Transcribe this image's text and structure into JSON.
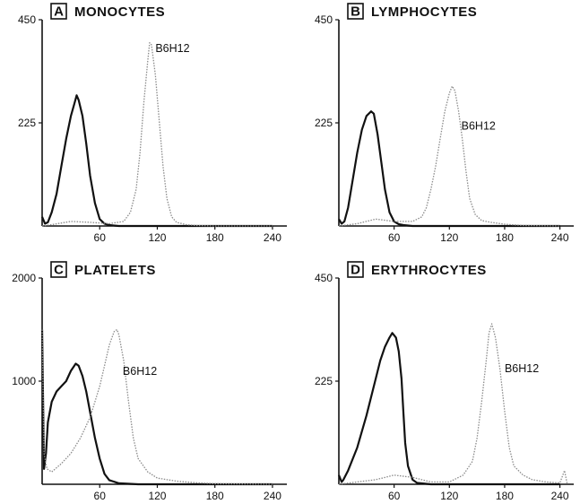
{
  "figure": {
    "background": "#ffffff",
    "ink": "#111111",
    "dotted_ink": "#8a8a8a"
  },
  "chart_data": [
    {
      "type": "line",
      "panel_letter": "A",
      "title": "MONOCYTES",
      "xlim": [
        0,
        255
      ],
      "ylim": [
        0,
        450
      ],
      "x_ticks": [
        60,
        120,
        180,
        240
      ],
      "y_ticks": [
        225,
        450
      ],
      "annotation": {
        "text": "B6H12",
        "x": 118,
        "y": 380
      },
      "series": [
        {
          "style": "solid",
          "x": [
            0,
            3,
            6,
            10,
            15,
            20,
            25,
            30,
            34,
            36,
            38,
            42,
            46,
            50,
            55,
            60,
            65,
            70,
            80,
            100,
            140,
            180,
            240
          ],
          "y": [
            20,
            5,
            8,
            30,
            70,
            130,
            190,
            240,
            270,
            285,
            275,
            240,
            180,
            110,
            50,
            15,
            5,
            2,
            0,
            0,
            0,
            0,
            0
          ]
        },
        {
          "style": "dotted",
          "label": "B6H12",
          "x": [
            0,
            10,
            30,
            50,
            70,
            85,
            92,
            98,
            102,
            106,
            110,
            112,
            114,
            118,
            122,
            126,
            130,
            135,
            140,
            150,
            160,
            180,
            240
          ],
          "y": [
            0,
            3,
            10,
            8,
            5,
            10,
            30,
            80,
            160,
            270,
            360,
            400,
            395,
            330,
            230,
            130,
            60,
            20,
            8,
            3,
            1,
            0,
            0
          ]
        }
      ]
    },
    {
      "type": "line",
      "panel_letter": "B",
      "title": "LYMPHOCYTES",
      "xlim": [
        0,
        255
      ],
      "ylim": [
        0,
        450
      ],
      "x_ticks": [
        60,
        120,
        180,
        240
      ],
      "y_ticks": [
        225,
        450
      ],
      "annotation": {
        "text": "B6H12",
        "x": 133,
        "y": 210
      },
      "series": [
        {
          "style": "solid",
          "x": [
            0,
            3,
            6,
            10,
            15,
            20,
            25,
            30,
            35,
            38,
            42,
            46,
            50,
            55,
            60,
            65,
            70,
            80,
            100,
            140,
            180,
            240
          ],
          "y": [
            15,
            5,
            10,
            40,
            100,
            160,
            210,
            240,
            250,
            245,
            200,
            140,
            80,
            30,
            10,
            4,
            2,
            0,
            0,
            0,
            0,
            0
          ]
        },
        {
          "style": "dotted",
          "label": "B6H12",
          "x": [
            0,
            20,
            40,
            60,
            80,
            90,
            95,
            100,
            105,
            110,
            115,
            120,
            123,
            126,
            130,
            134,
            138,
            142,
            148,
            155,
            165,
            180,
            200,
            240
          ],
          "y": [
            0,
            5,
            15,
            10,
            10,
            20,
            40,
            80,
            130,
            190,
            250,
            290,
            305,
            295,
            250,
            190,
            120,
            60,
            25,
            12,
            8,
            4,
            1,
            0
          ]
        }
      ]
    },
    {
      "type": "line",
      "panel_letter": "C",
      "title": "PLATELETS",
      "xlim": [
        0,
        255
      ],
      "ylim": [
        0,
        2000
      ],
      "x_ticks": [
        60,
        120,
        180,
        240
      ],
      "y_ticks": [
        1000,
        2000
      ],
      "annotation": {
        "text": "B6H12",
        "x": 84,
        "y": 1060
      },
      "series": [
        {
          "style": "solid",
          "x": [
            0,
            2,
            4,
            6,
            10,
            15,
            20,
            25,
            30,
            35,
            38,
            42,
            46,
            50,
            55,
            60,
            65,
            70,
            80,
            100,
            140,
            240
          ],
          "y": [
            1500,
            150,
            300,
            600,
            800,
            900,
            950,
            1000,
            1100,
            1170,
            1150,
            1050,
            900,
            700,
            450,
            250,
            100,
            40,
            10,
            0,
            0,
            0
          ]
        },
        {
          "style": "dotted",
          "label": "B6H12",
          "x": [
            0,
            2,
            5,
            10,
            20,
            30,
            40,
            50,
            55,
            60,
            65,
            70,
            75,
            78,
            80,
            85,
            90,
            95,
            100,
            110,
            120,
            140,
            160,
            180,
            240
          ],
          "y": [
            1500,
            300,
            150,
            120,
            200,
            300,
            450,
            650,
            800,
            950,
            1150,
            1350,
            1480,
            1500,
            1450,
            1200,
            800,
            450,
            250,
            120,
            60,
            30,
            15,
            5,
            0
          ]
        }
      ]
    },
    {
      "type": "line",
      "panel_letter": "D",
      "title": "ERYTHROCYTES",
      "xlim": [
        0,
        255
      ],
      "ylim": [
        0,
        450
      ],
      "x_ticks": [
        60,
        120,
        180,
        240
      ],
      "y_ticks": [
        225,
        450
      ],
      "annotation": {
        "text": "B6H12",
        "x": 180,
        "y": 245
      },
      "series": [
        {
          "style": "solid",
          "x": [
            0,
            3,
            5,
            10,
            20,
            30,
            40,
            45,
            50,
            55,
            58,
            62,
            65,
            68,
            70,
            72,
            75,
            80,
            85,
            100,
            140,
            240
          ],
          "y": [
            20,
            5,
            10,
            30,
            80,
            150,
            230,
            270,
            300,
            320,
            330,
            320,
            290,
            230,
            160,
            90,
            40,
            10,
            3,
            0,
            0,
            0
          ]
        },
        {
          "style": "dotted",
          "label": "B6H12",
          "x": [
            0,
            20,
            40,
            60,
            80,
            100,
            120,
            135,
            145,
            150,
            155,
            160,
            163,
            166,
            170,
            175,
            180,
            185,
            190,
            200,
            210,
            225,
            240,
            245,
            248
          ],
          "y": [
            0,
            5,
            10,
            20,
            15,
            5,
            5,
            20,
            50,
            100,
            180,
            270,
            330,
            350,
            320,
            250,
            160,
            80,
            40,
            20,
            10,
            5,
            3,
            30,
            0
          ]
        }
      ]
    }
  ]
}
